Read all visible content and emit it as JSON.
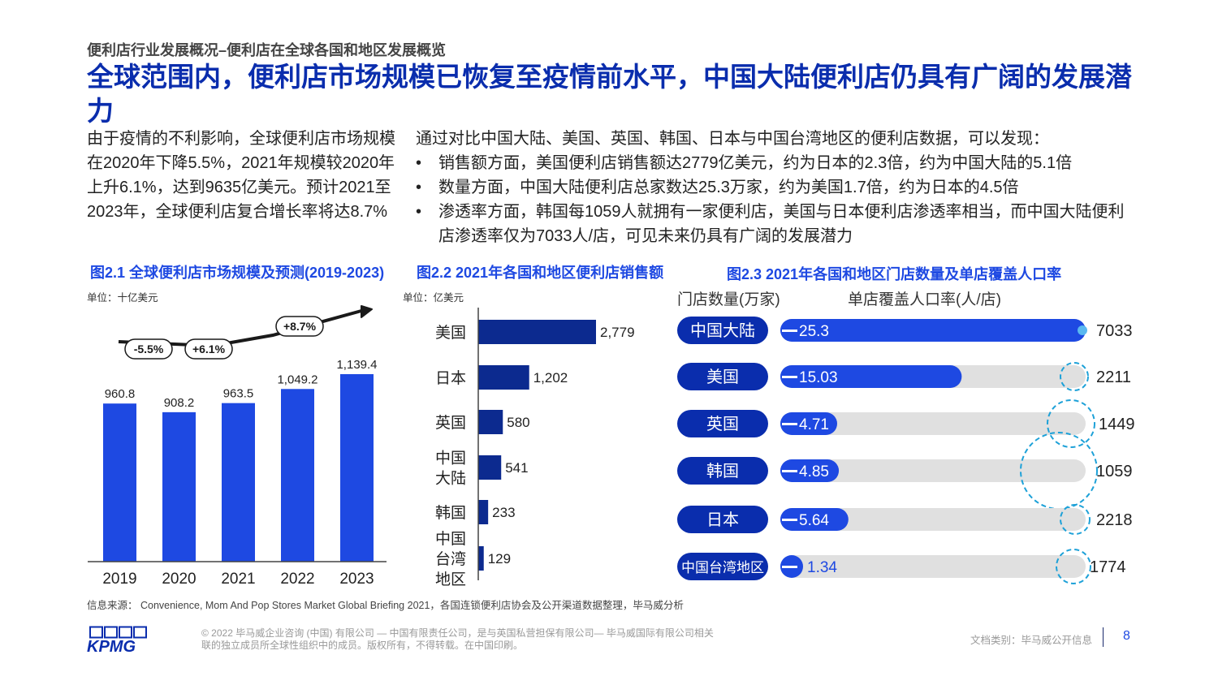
{
  "header": {
    "kicker": "便利店行业发展概况–便利店在全球各国和地区发展概览",
    "headline": "全球范围内，便利店市场规模已恢复至疫情前水平，中国大陆便利店仍具有广阔的发展潜力"
  },
  "intro_text": "由于疫情的不利影响，全球便利店市场规模在2020年下降5.5%，2021年规模较2020年上升6.1%，达到9635亿美元。预计2021至2023年，全球便利店复合增长率将达8.7%",
  "findings": {
    "lead": "通过对比中国大陆、美国、英国、韩国、日本与中国台湾地区的便利店数据，可以发现：",
    "bullets": [
      "销售额方面，美国便利店销售额达2779亿美元，约为日本的2.3倍，约为中国大陆的5.1倍",
      "数量方面，中国大陆便利店总家数达25.3万家，约为美国1.7倍，约为日本的4.5倍",
      "渗透率方面，韩国每1059人就拥有一家便利店，美国与日本便利店渗透率相当，而中国大陆便利店渗透率仅为7033人/店，可见未来仍具有广阔的发展潜力"
    ]
  },
  "figures": {
    "fig1_title": "图2.1 全球便利店市场规模及预测(2019-2023)",
    "fig1_unit": "单位：十亿美元",
    "fig2_title": "图2.2 2021年各国和地区便利店销售额",
    "fig2_unit": "单位：亿美元",
    "fig3_title": "图2.3 2021年各国和地区门店数量及单店覆盖人口率",
    "fig3_legend_left": "门店数量(万家)",
    "fig3_legend_right": "单店覆盖人口率(人/店)"
  },
  "colors": {
    "brand_dark": "#0a2dad",
    "bar_blue": "#1e49e2",
    "bar_navy": "#0c2a8f",
    "track_grey": "#e0e0e0",
    "circle_cyan": "#1da1d8"
  },
  "chart_data": [
    {
      "type": "bar",
      "categories": [
        "2019",
        "2020",
        "2021",
        "2022",
        "2023"
      ],
      "values": [
        960.8,
        908.2,
        963.5,
        1049.2,
        1139.4
      ],
      "value_labels": [
        "960.8",
        "908.2",
        "963.5",
        "1,049.2",
        "1,139.4"
      ],
      "annotations": [
        "-5.5%",
        "+6.1%",
        "+8.7%"
      ],
      "ylim": [
        0,
        1200
      ]
    },
    {
      "type": "bar",
      "orientation": "horizontal",
      "categories": [
        "美国",
        "日本",
        "英国",
        "中国大陆",
        "韩国",
        "中国台湾地区"
      ],
      "category_lines": [
        [
          "美国"
        ],
        [
          "日本"
        ],
        [
          "英国"
        ],
        [
          "中国",
          "大陆"
        ],
        [
          "韩国"
        ],
        [
          "中国",
          "台湾",
          "地区"
        ]
      ],
      "values": [
        2779,
        1202,
        580,
        541,
        233,
        129
      ],
      "value_labels": [
        "2,779",
        "1,202",
        "580",
        "541",
        "233",
        "129"
      ],
      "xlim": [
        0,
        3000
      ]
    },
    {
      "type": "bar",
      "orientation": "horizontal",
      "categories": [
        "中国大陆",
        "美国",
        "英国",
        "韩国",
        "日本",
        "中国台湾地区"
      ],
      "series": [
        {
          "name": "门店数量(万家)",
          "values": [
            25.3,
            15.03,
            4.71,
            4.85,
            5.64,
            1.34
          ],
          "value_labels": [
            "25.3",
            "15.03",
            "4.71",
            "4.85",
            "5.64",
            "1.34"
          ]
        },
        {
          "name": "单店覆盖人口率(人/店)",
          "values": [
            7033,
            2211,
            1449,
            1059,
            2218,
            1774
          ],
          "value_labels": [
            "7033",
            "2211",
            "1449",
            "1059",
            "2218",
            "1774"
          ]
        }
      ],
      "xlim": [
        0,
        25.3
      ]
    }
  ],
  "footer": {
    "source": "信息来源：   Convenience, Mom And Pop Stores Market Global Briefing 2021，各国连锁便利店协会及公开渠道数据整理，毕马威分析",
    "logo_text": "KPMG",
    "copyright": "© 2022 毕马威企业咨询 (中国) 有限公司 — 中国有限责任公司，是与英国私营担保有限公司— 毕马威国际有限公司相关联的独立成员所全球性组织中的成员。版权所有，不得转载。在中国印刷。",
    "doc_class": "文档类别：毕马威公开信息",
    "page_number": "8"
  }
}
